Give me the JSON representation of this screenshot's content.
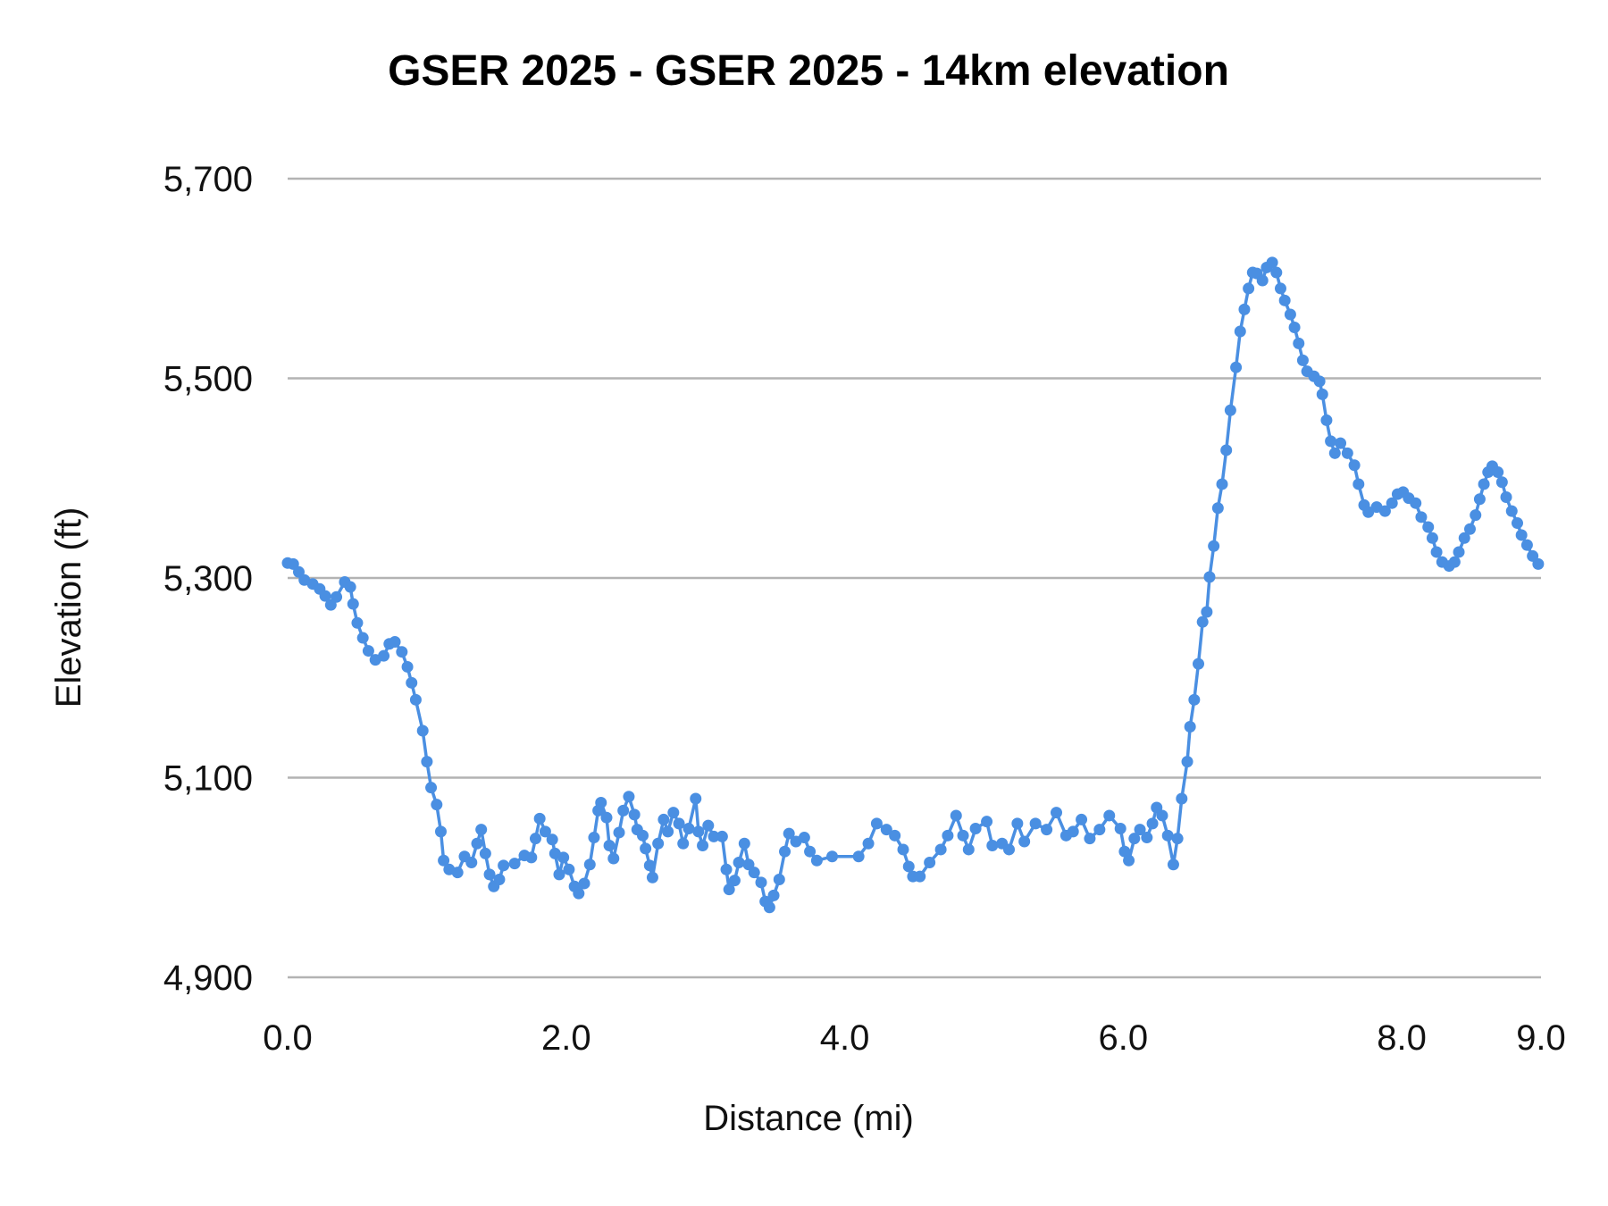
{
  "chart_data": {
    "type": "line",
    "title": "GSER 2025 - GSER 2025 - 14km elevation",
    "xlabel": "Distance (mi)",
    "ylabel": "Elevation (ft)",
    "xlim": [
      0,
      9
    ],
    "ylim": [
      4900,
      5700
    ],
    "x_ticks": [
      0,
      2,
      4,
      6,
      8,
      9
    ],
    "x_tick_labels": [
      "0.0",
      "2.0",
      "4.0",
      "6.0",
      "8.0",
      "9.0"
    ],
    "y_ticks": [
      4900,
      5100,
      5300,
      5500,
      5700
    ],
    "y_tick_labels": [
      "4,900",
      "5,100",
      "5,300",
      "5,500",
      "5,700"
    ],
    "grid": "horizontal",
    "legend": "none",
    "markers": true,
    "color": "#4a8fe2",
    "series": [
      {
        "x": [
          0,
          0.04,
          0.08,
          0.12,
          0.18,
          0.23,
          0.27,
          0.31,
          0.35,
          0.41,
          0.45,
          0.47,
          0.5,
          0.54,
          0.58,
          0.63,
          0.69,
          0.73,
          0.77,
          0.82,
          0.86,
          0.89,
          0.92,
          0.97,
          1.0,
          1.03,
          1.07,
          1.1,
          1.12,
          1.16,
          1.22,
          1.27,
          1.32,
          1.36,
          1.39,
          1.42,
          1.45,
          1.48,
          1.52,
          1.55,
          1.63,
          1.7,
          1.75,
          1.78,
          1.81,
          1.85,
          1.9,
          1.92,
          1.95,
          1.98,
          2.02,
          2.06,
          2.09,
          2.13,
          2.17,
          2.2,
          2.23,
          2.25,
          2.29,
          2.31,
          2.34,
          2.38,
          2.41,
          2.45,
          2.49,
          2.51,
          2.55,
          2.57,
          2.6,
          2.62,
          2.66,
          2.7,
          2.73,
          2.77,
          2.81,
          2.84,
          2.88,
          2.93,
          2.95,
          2.98,
          3.02,
          3.06,
          3.12,
          3.15,
          3.17,
          3.21,
          3.24,
          3.28,
          3.31,
          3.35,
          3.4,
          3.43,
          3.46,
          3.49,
          3.53,
          3.57,
          3.6,
          3.65,
          3.71,
          3.75,
          3.8,
          3.91,
          4.1,
          4.17,
          4.23,
          4.3,
          4.36,
          4.42,
          4.46,
          4.49,
          4.54,
          4.61,
          4.69,
          4.74,
          4.8,
          4.85,
          4.89,
          4.94,
          5.02,
          5.06,
          5.13,
          5.18,
          5.24,
          5.29,
          5.37,
          5.45,
          5.52,
          5.59,
          5.64,
          5.7,
          5.76,
          5.83,
          5.9,
          5.98,
          6.01,
          6.04,
          6.08,
          6.12,
          6.17,
          6.21,
          6.24,
          6.28,
          6.32,
          6.36,
          6.39,
          6.42,
          6.46,
          6.48,
          6.51,
          6.54,
          6.57,
          6.6,
          6.62,
          6.65,
          6.68,
          6.71,
          6.74,
          6.77,
          6.81,
          6.84,
          6.87,
          6.9,
          6.93,
          6.96,
          7.0,
          7.03,
          7.07,
          7.1,
          7.13,
          7.16,
          7.2,
          7.23,
          7.26,
          7.29,
          7.32,
          7.37,
          7.41,
          7.43,
          7.46,
          7.49,
          7.52,
          7.56,
          7.61,
          7.66,
          7.69,
          7.73,
          7.76,
          7.82,
          7.88,
          7.93,
          7.97,
          8.01,
          8.05,
          8.1,
          8.14,
          8.19,
          8.22,
          8.25,
          8.29,
          8.34,
          8.38,
          8.41,
          8.45,
          8.49,
          8.53,
          8.56,
          8.59,
          8.62,
          8.65,
          8.69,
          8.72,
          8.75,
          8.79,
          8.83,
          8.86,
          8.9,
          8.94,
          8.98
        ],
        "y": [
          5315,
          5314,
          5306,
          5298,
          5294,
          5289,
          5282,
          5273,
          5281,
          5296,
          5291,
          5274,
          5255,
          5240,
          5227,
          5218,
          5222,
          5234,
          5236,
          5226,
          5211,
          5195,
          5178,
          5147,
          5116,
          5090,
          5073,
          5046,
          5017,
          5008,
          5005,
          5021,
          5015,
          5034,
          5048,
          5024,
          5003,
          4991,
          4998,
          5012,
          5014,
          5022,
          5020,
          5039,
          5059,
          5046,
          5038,
          5024,
          5003,
          5020,
          5008,
          4991,
          4984,
          4994,
          5013,
          5040,
          5067,
          5075,
          5060,
          5032,
          5019,
          5045,
          5067,
          5081,
          5063,
          5048,
          5042,
          5029,
          5012,
          5000,
          5034,
          5058,
          5046,
          5065,
          5054,
          5034,
          5049,
          5079,
          5046,
          5032,
          5052,
          5041,
          5041,
          5008,
          4988,
          4997,
          5015,
          5034,
          5013,
          5005,
          4995,
          4976,
          4970,
          4982,
          4998,
          5026,
          5044,
          5036,
          5040,
          5026,
          5017,
          5021,
          5021,
          5034,
          5054,
          5048,
          5042,
          5028,
          5011,
          5001,
          5001,
          5015,
          5028,
          5042,
          5062,
          5042,
          5028,
          5049,
          5056,
          5032,
          5034,
          5028,
          5054,
          5036,
          5054,
          5048,
          5065,
          5042,
          5046,
          5058,
          5039,
          5048,
          5062,
          5049,
          5026,
          5017,
          5039,
          5048,
          5040,
          5054,
          5070,
          5062,
          5042,
          5013,
          5039,
          5079,
          5116,
          5151,
          5178,
          5214,
          5256,
          5266,
          5301,
          5332,
          5370,
          5394,
          5428,
          5468,
          5511,
          5547,
          5569,
          5590,
          5606,
          5605,
          5598,
          5611,
          5616,
          5606,
          5590,
          5578,
          5564,
          5551,
          5535,
          5518,
          5507,
          5502,
          5497,
          5484,
          5458,
          5437,
          5425,
          5435,
          5425,
          5413,
          5394,
          5373,
          5366,
          5371,
          5367,
          5375,
          5384,
          5386,
          5380,
          5375,
          5361,
          5351,
          5340,
          5326,
          5316,
          5312,
          5316,
          5326,
          5340,
          5349,
          5363,
          5379,
          5394,
          5406,
          5412,
          5406,
          5396,
          5381,
          5367,
          5355,
          5343,
          5333,
          5322,
          5314
        ]
      }
    ]
  }
}
